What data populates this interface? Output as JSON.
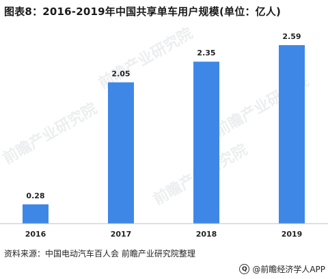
{
  "title": "图表8：2016-2019年中国共享单车用户规模(单位：亿人)",
  "chart_data": {
    "type": "bar",
    "categories": [
      "2016",
      "2017",
      "2018",
      "2019"
    ],
    "values": [
      0.28,
      2.05,
      2.35,
      2.59
    ],
    "data_labels": [
      "0.28",
      "2.05",
      "2.35",
      "2.59"
    ],
    "bar_color": "#3f87e6",
    "ylim": [
      0,
      2.59
    ],
    "grid": false,
    "legend": "none"
  },
  "source": "资料来源：中国电动汽车百人会 前瞻产业研究院整理",
  "footer": {
    "logo_mark": "Q",
    "brand": "@前瞻经济学人APP"
  },
  "watermark": "前瞻产业研究院"
}
